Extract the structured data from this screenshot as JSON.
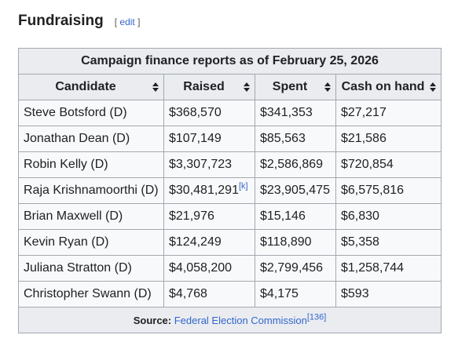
{
  "section": {
    "title": "Fundraising",
    "edit_label": "edit"
  },
  "table": {
    "caption": "Campaign finance reports as of February 25, 2026",
    "headers": [
      "Candidate",
      "Raised",
      "Spent",
      "Cash on hand"
    ],
    "rows": [
      {
        "candidate": "Steve Botsford (D)",
        "raised": "$368,570",
        "raised_ref": "",
        "spent": "$341,353",
        "cash": "$27,217"
      },
      {
        "candidate": "Jonathan Dean (D)",
        "raised": "$107,149",
        "raised_ref": "",
        "spent": "$85,563",
        "cash": "$21,586"
      },
      {
        "candidate": "Robin Kelly (D)",
        "raised": "$3,307,723",
        "raised_ref": "",
        "spent": "$2,586,869",
        "cash": "$720,854"
      },
      {
        "candidate": "Raja Krishnamoorthi (D)",
        "raised": "$30,481,291",
        "raised_ref": "[k]",
        "spent": "$23,905,475",
        "cash": "$6,575,816"
      },
      {
        "candidate": "Brian Maxwell (D)",
        "raised": "$21,976",
        "raised_ref": "",
        "spent": "$15,146",
        "cash": "$6,830"
      },
      {
        "candidate": "Kevin Ryan (D)",
        "raised": "$124,249",
        "raised_ref": "",
        "spent": "$118,890",
        "cash": "$5,358"
      },
      {
        "candidate": "Juliana Stratton (D)",
        "raised": "$4,058,200",
        "raised_ref": "",
        "spent": "$2,799,456",
        "cash": "$1,258,744"
      },
      {
        "candidate": "Christopher Swann (D)",
        "raised": "$4,768",
        "raised_ref": "",
        "spent": "$4,175",
        "cash": "$593"
      }
    ],
    "source_label": "Source:",
    "source_link": "Federal Election Commission",
    "source_ref": "[136]"
  },
  "icons": {
    "sort": "sort-arrows-icon"
  },
  "colors": {
    "header_bg": "#eaecf0",
    "cell_bg": "#f8f9fa",
    "candidate_bg": "#b3d0ff",
    "link": "#3366cc",
    "border": "#a2a9b1"
  }
}
